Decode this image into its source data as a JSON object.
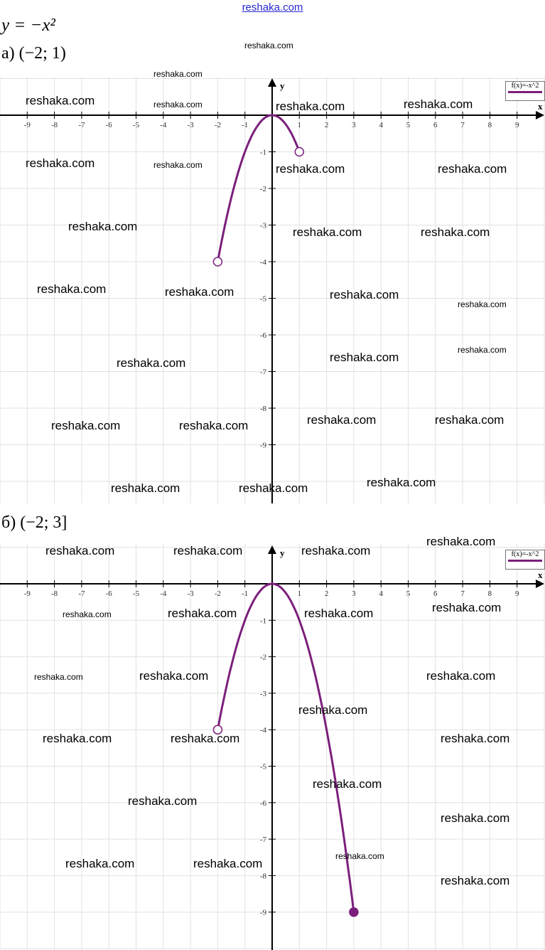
{
  "header": {
    "site": "reshaka.com",
    "formula": "y = −x²"
  },
  "parts": [
    {
      "label": "а) (−2; 1)"
    },
    {
      "label": "б) (−2; 3]"
    }
  ],
  "watermark": "reshaka.com",
  "chart_data": [
    {
      "type": "line",
      "function": "f(x)=-x^2",
      "legend": "f(x)=-x^2",
      "legend_position": "top-right",
      "xlabel": "x",
      "ylabel": "y",
      "xlim": [
        -10,
        10
      ],
      "ylim": [
        -10.5,
        1
      ],
      "x_ticks": [
        -9,
        -8,
        -7,
        -6,
        -5,
        -4,
        -3,
        -2,
        -1,
        1,
        2,
        3,
        4,
        5,
        6,
        7,
        8,
        9
      ],
      "y_ticks": [
        -1,
        -2,
        -3,
        -4,
        -5,
        -6,
        -7,
        -8,
        -9
      ],
      "grid": true,
      "color": "#7b1f7b",
      "domain": [
        -2,
        1
      ],
      "endpoints": [
        {
          "x": -2,
          "y": -4,
          "type": "open"
        },
        {
          "x": 1,
          "y": -1,
          "type": "open"
        }
      ]
    },
    {
      "type": "line",
      "function": "f(x)=-x^2",
      "legend": "f(x)=-x^2",
      "legend_position": "top-right",
      "xlabel": "x",
      "ylabel": "y",
      "xlim": [
        -10,
        10
      ],
      "ylim": [
        -10,
        1
      ],
      "x_ticks": [
        -9,
        -8,
        -7,
        -6,
        -5,
        -4,
        -3,
        -2,
        -1,
        1,
        2,
        3,
        4,
        5,
        6,
        7,
        8,
        9
      ],
      "y_ticks": [
        -1,
        -2,
        -3,
        -4,
        -5,
        -6,
        -7,
        -8,
        -9
      ],
      "grid": true,
      "color": "#7b1f7b",
      "domain": [
        -2,
        3
      ],
      "endpoints": [
        {
          "x": -2,
          "y": -4,
          "type": "open"
        },
        {
          "x": 3,
          "y": -9,
          "type": "closed"
        }
      ]
    }
  ]
}
